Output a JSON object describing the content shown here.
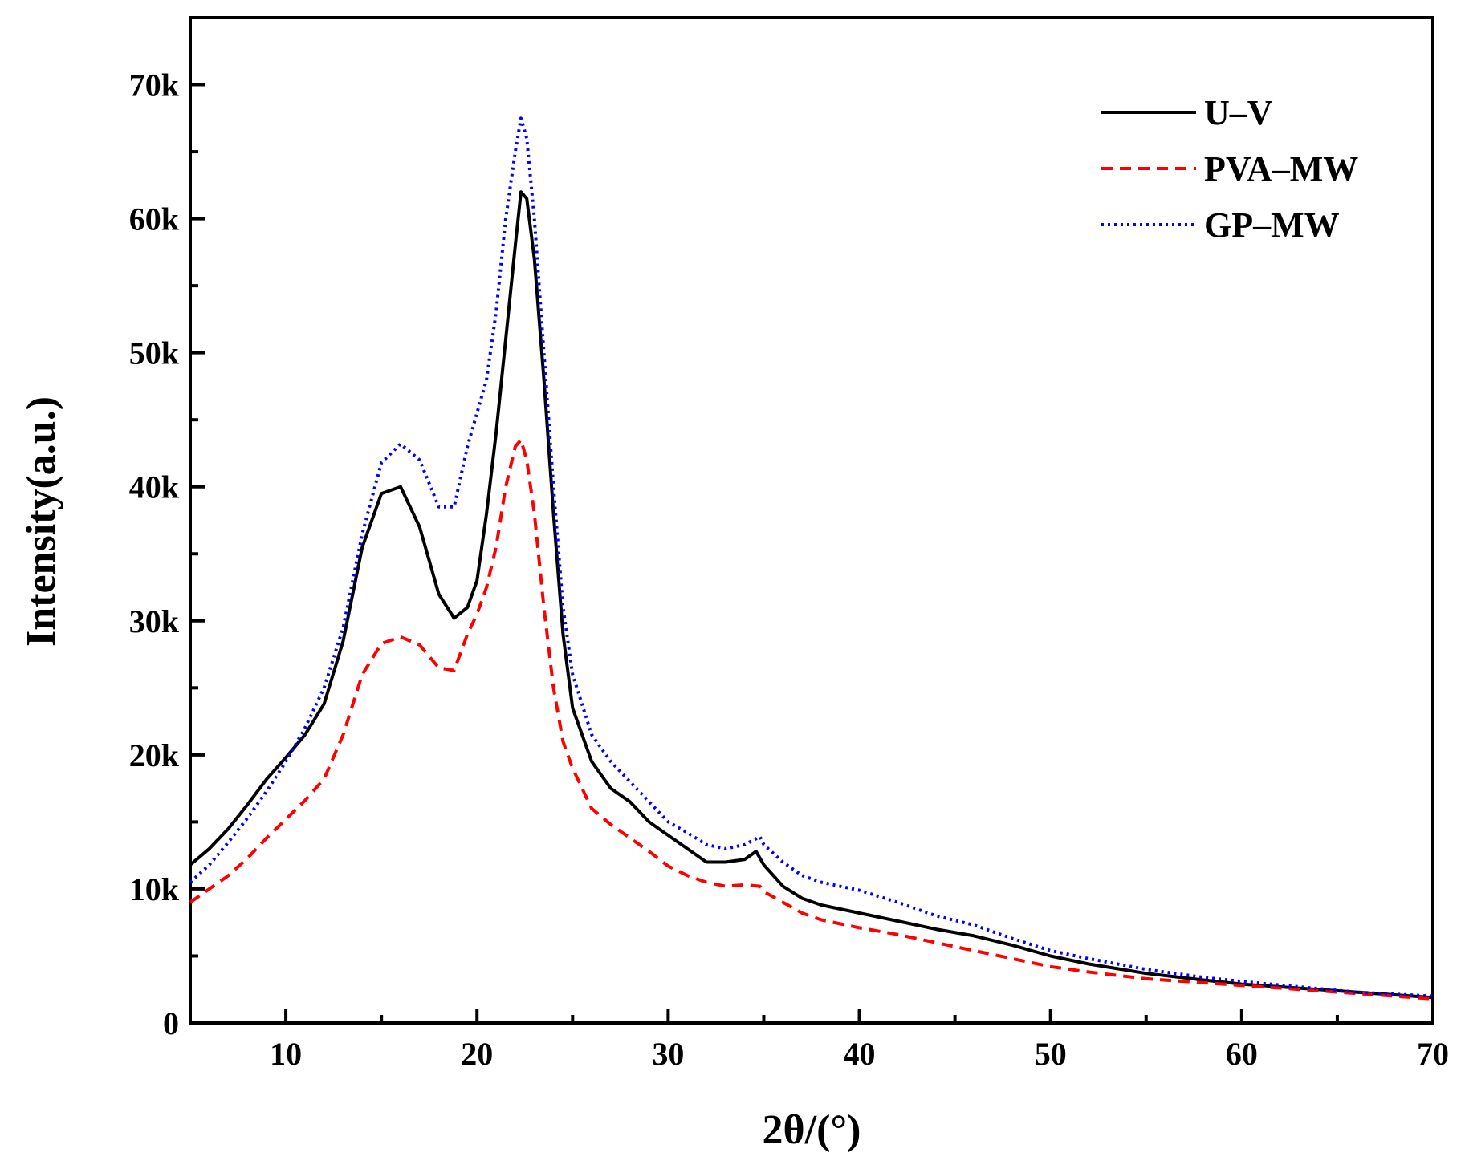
{
  "chart_data": {
    "type": "line",
    "title": "",
    "xlabel": "2θ/(°)",
    "ylabel": "Intensity(a.u.)",
    "xlim": [
      5,
      70
    ],
    "ylim": [
      0,
      75000
    ],
    "x_ticks": [
      10,
      20,
      30,
      40,
      50,
      60,
      70
    ],
    "x_tick_labels": [
      "10",
      "20",
      "30",
      "40",
      "50",
      "60",
      "70"
    ],
    "y_ticks": [
      0,
      10000,
      20000,
      30000,
      40000,
      50000,
      60000,
      70000
    ],
    "y_tick_labels": [
      "0",
      "10k",
      "20k",
      "30k",
      "40k",
      "50k",
      "60k",
      "70k"
    ],
    "legend_position": "top-right",
    "grid": false,
    "series": [
      {
        "name": "U–V",
        "color": "#000000",
        "style": "solid",
        "points": [
          [
            5,
            11800
          ],
          [
            6,
            13000
          ],
          [
            7,
            14500
          ],
          [
            8,
            16300
          ],
          [
            9,
            18200
          ],
          [
            10,
            19800
          ],
          [
            11,
            21500
          ],
          [
            12,
            23800
          ],
          [
            13,
            28500
          ],
          [
            14,
            35500
          ],
          [
            15,
            39500
          ],
          [
            16,
            40000
          ],
          [
            17,
            37000
          ],
          [
            18,
            32000
          ],
          [
            18.8,
            30200
          ],
          [
            19.5,
            31000
          ],
          [
            20,
            33000
          ],
          [
            20.5,
            38000
          ],
          [
            21,
            44000
          ],
          [
            21.5,
            51000
          ],
          [
            22,
            58000
          ],
          [
            22.3,
            62000
          ],
          [
            22.6,
            61500
          ],
          [
            23,
            57000
          ],
          [
            23.5,
            48000
          ],
          [
            24,
            38000
          ],
          [
            24.5,
            29000
          ],
          [
            25,
            23500
          ],
          [
            26,
            19500
          ],
          [
            27,
            17500
          ],
          [
            28,
            16500
          ],
          [
            29,
            15000
          ],
          [
            30,
            14000
          ],
          [
            31,
            13000
          ],
          [
            32,
            12000
          ],
          [
            33,
            12000
          ],
          [
            34,
            12200
          ],
          [
            34.6,
            12800
          ],
          [
            35,
            11800
          ],
          [
            36,
            10200
          ],
          [
            37,
            9300
          ],
          [
            38,
            8800
          ],
          [
            40,
            8200
          ],
          [
            42,
            7600
          ],
          [
            44,
            7000
          ],
          [
            46,
            6500
          ],
          [
            48,
            5800
          ],
          [
            50,
            5000
          ],
          [
            52,
            4400
          ],
          [
            55,
            3700
          ],
          [
            58,
            3200
          ],
          [
            60,
            2900
          ],
          [
            63,
            2600
          ],
          [
            66,
            2300
          ],
          [
            70,
            1900
          ]
        ]
      },
      {
        "name": "PVA–MW",
        "color": "#ff0000",
        "style": "dashed",
        "points": [
          [
            5,
            9000
          ],
          [
            6,
            10000
          ],
          [
            7,
            11000
          ],
          [
            8,
            12300
          ],
          [
            9,
            13800
          ],
          [
            10,
            15200
          ],
          [
            11,
            16600
          ],
          [
            12,
            18200
          ],
          [
            13,
            21500
          ],
          [
            14,
            26000
          ],
          [
            15,
            28300
          ],
          [
            16,
            28800
          ],
          [
            17,
            28200
          ],
          [
            18,
            26500
          ],
          [
            18.8,
            26300
          ],
          [
            19.5,
            29000
          ],
          [
            20,
            30500
          ],
          [
            20.5,
            32500
          ],
          [
            21,
            35500
          ],
          [
            21.5,
            40000
          ],
          [
            22,
            43000
          ],
          [
            22.3,
            43500
          ],
          [
            22.6,
            42000
          ],
          [
            23,
            38000
          ],
          [
            23.5,
            31000
          ],
          [
            24,
            25000
          ],
          [
            24.5,
            21000
          ],
          [
            25,
            19000
          ],
          [
            26,
            16000
          ],
          [
            27,
            14800
          ],
          [
            28,
            13800
          ],
          [
            29,
            12800
          ],
          [
            30,
            11700
          ],
          [
            31,
            11000
          ],
          [
            32,
            10500
          ],
          [
            33,
            10200
          ],
          [
            34,
            10300
          ],
          [
            34.8,
            10200
          ],
          [
            35,
            9800
          ],
          [
            36,
            9000
          ],
          [
            37,
            8200
          ],
          [
            38,
            7700
          ],
          [
            40,
            7100
          ],
          [
            42,
            6600
          ],
          [
            44,
            6000
          ],
          [
            46,
            5400
          ],
          [
            48,
            4800
          ],
          [
            50,
            4200
          ],
          [
            52,
            3800
          ],
          [
            55,
            3300
          ],
          [
            58,
            3000
          ],
          [
            60,
            2800
          ],
          [
            63,
            2500
          ],
          [
            66,
            2200
          ],
          [
            70,
            1800
          ]
        ]
      },
      {
        "name": "GP–MW",
        "color": "#0000ff",
        "style": "dotted",
        "points": [
          [
            5,
            10500
          ],
          [
            6,
            11800
          ],
          [
            7,
            13500
          ],
          [
            8,
            15300
          ],
          [
            9,
            17300
          ],
          [
            10,
            19500
          ],
          [
            11,
            22000
          ],
          [
            12,
            25000
          ],
          [
            13,
            29500
          ],
          [
            14,
            36500
          ],
          [
            15,
            41800
          ],
          [
            16,
            43200
          ],
          [
            17,
            42000
          ],
          [
            18,
            38500
          ],
          [
            18.8,
            38500
          ],
          [
            19.5,
            43000
          ],
          [
            20,
            45500
          ],
          [
            20.5,
            48000
          ],
          [
            21,
            53000
          ],
          [
            21.5,
            60000
          ],
          [
            22,
            65000
          ],
          [
            22.3,
            67500
          ],
          [
            22.6,
            66000
          ],
          [
            23,
            60000
          ],
          [
            23.5,
            50000
          ],
          [
            24,
            40000
          ],
          [
            24.5,
            31000
          ],
          [
            25,
            26000
          ],
          [
            26,
            21500
          ],
          [
            27,
            19500
          ],
          [
            28,
            18000
          ],
          [
            29,
            16500
          ],
          [
            30,
            15000
          ],
          [
            31,
            14200
          ],
          [
            32,
            13300
          ],
          [
            33,
            13000
          ],
          [
            34,
            13300
          ],
          [
            34.8,
            13900
          ],
          [
            35,
            13300
          ],
          [
            36,
            12000
          ],
          [
            37,
            11000
          ],
          [
            38,
            10500
          ],
          [
            40,
            9900
          ],
          [
            42,
            9000
          ],
          [
            44,
            8000
          ],
          [
            46,
            7300
          ],
          [
            48,
            6300
          ],
          [
            50,
            5400
          ],
          [
            52,
            4800
          ],
          [
            55,
            4000
          ],
          [
            58,
            3400
          ],
          [
            60,
            3100
          ],
          [
            63,
            2700
          ],
          [
            66,
            2300
          ],
          [
            70,
            2000
          ]
        ]
      }
    ]
  }
}
